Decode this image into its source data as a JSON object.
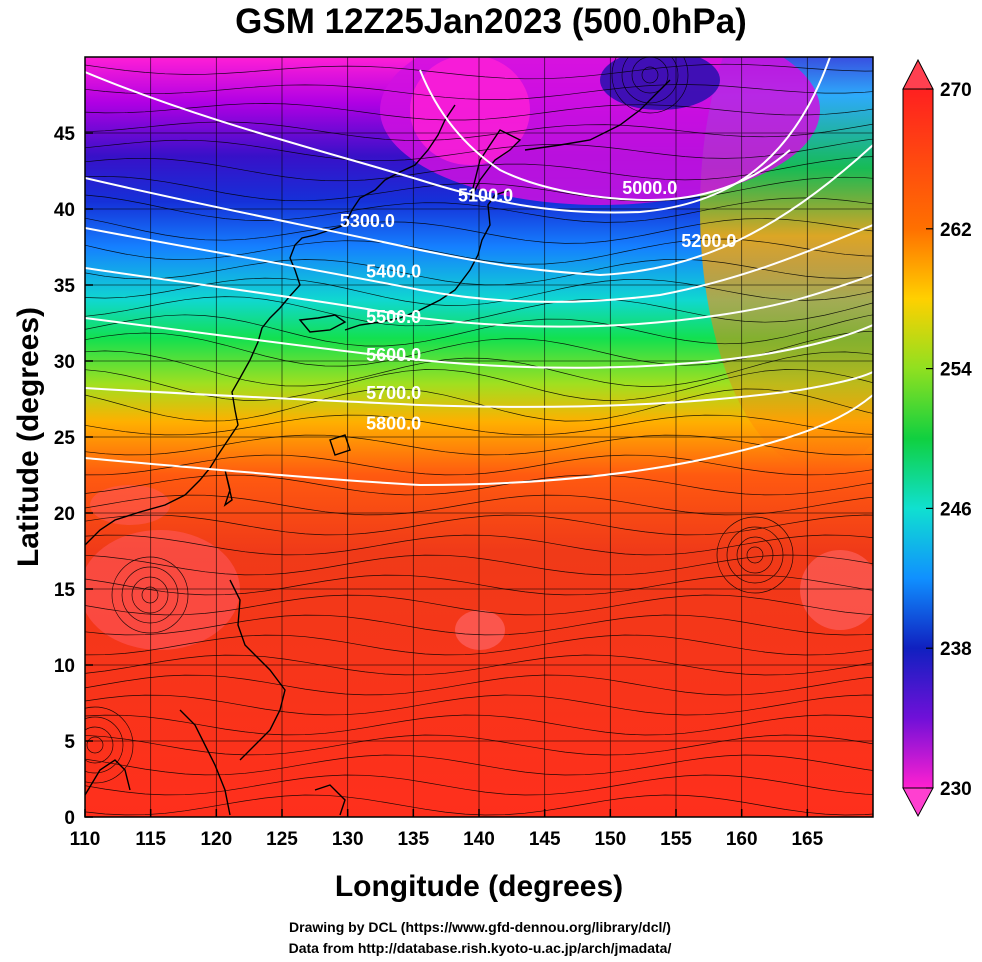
{
  "title": "GSM 12Z25Jan2023 (500.0hPa)",
  "credits": [
    "Drawing by DCL (https://www.gfd-dennou.org/library/dcl/)",
    "Data from http://database.rish.kyoto-u.ac.jp/arch/jmadata/"
  ],
  "map": {
    "xlabel": "Longitude (degrees)",
    "ylabel": "Latitude  (degrees)",
    "xlim": [
      110,
      170
    ],
    "ylim": [
      0,
      50
    ],
    "xticks": [
      110,
      115,
      120,
      125,
      130,
      135,
      140,
      145,
      150,
      155,
      160,
      165
    ],
    "yticks": [
      0,
      5,
      10,
      15,
      20,
      25,
      30,
      35,
      40,
      45
    ],
    "grid": true
  },
  "colorbar": {
    "min": 230,
    "max": 270,
    "tick_labels": [
      "270",
      "262",
      "254",
      "246",
      "238",
      "230"
    ],
    "tick_values": [
      270,
      262,
      254,
      246,
      238,
      230
    ],
    "colors": [
      "#ff1fd6",
      "#b400e6",
      "#6a10d8",
      "#1020d0",
      "#1570ff",
      "#18c8ff",
      "#10e8b0",
      "#14d83a",
      "#8ce020",
      "#f2e60a",
      "#ffaa00",
      "#ff6a00",
      "#f03c10",
      "#ff2a1a"
    ]
  },
  "contour_labels": [
    {
      "text": "5000.0",
      "lon": 153,
      "lat": 41
    },
    {
      "text": "5100.0",
      "lon": 140.5,
      "lat": 40.5
    },
    {
      "text": "5200.0",
      "lon": 157.5,
      "lat": 37.5
    },
    {
      "text": "5300.0",
      "lon": 131.5,
      "lat": 38.8
    },
    {
      "text": "5400.0",
      "lon": 133.5,
      "lat": 35.5
    },
    {
      "text": "5500.0",
      "lon": 133.5,
      "lat": 32.5
    },
    {
      "text": "5600.0",
      "lon": 133.5,
      "lat": 30.0
    },
    {
      "text": "5700.0",
      "lon": 133.5,
      "lat": 27.5
    },
    {
      "text": "5800.0",
      "lon": 133.5,
      "lat": 25.5
    }
  ]
}
